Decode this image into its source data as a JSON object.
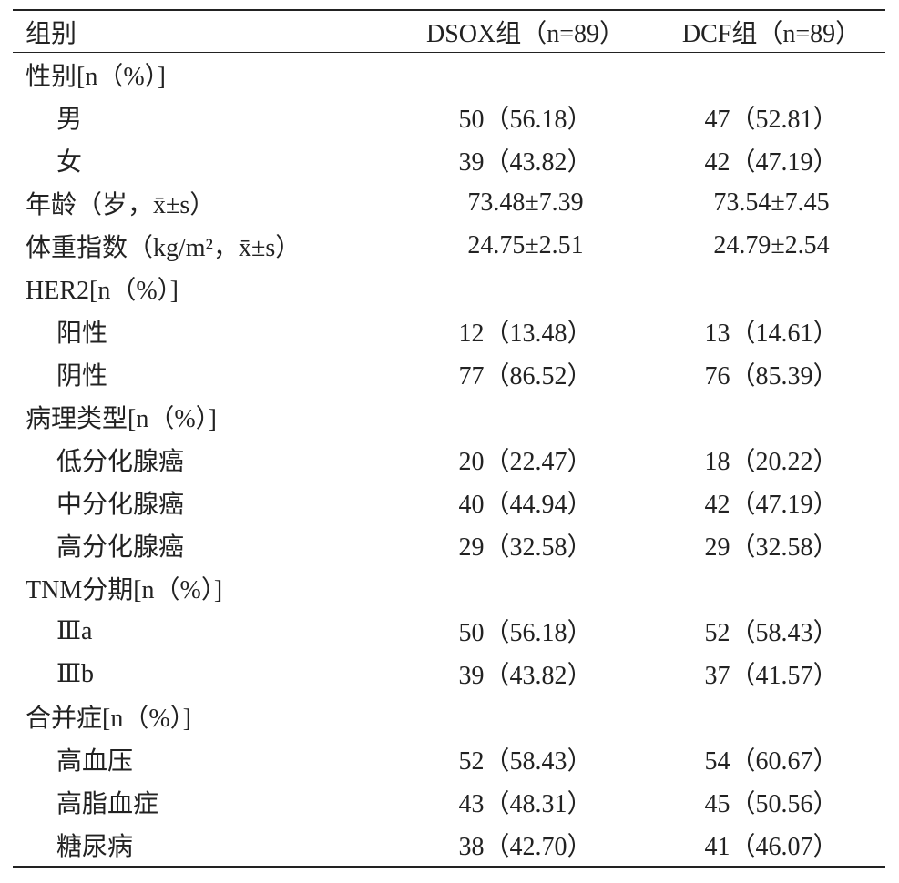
{
  "table": {
    "header": [
      "组别",
      "DSOX组（n=89）",
      "DCF组（n=89）"
    ],
    "rows": [
      {
        "label": "性别[n（%）]",
        "rows": [
          [
            "男",
            "50（56.18）",
            "47（52.81）"
          ],
          [
            "女",
            "39（43.82）",
            "42（47.19）"
          ]
        ]
      },
      [
        "年龄（岁，x̄±s）",
        "73.48±7.39",
        "73.54±7.45"
      ],
      [
        "体重指数（kg/m²，x̄±s）",
        "24.75±2.51",
        "24.79±2.54"
      ],
      {
        "label": "HER2[n（%）]",
        "rows": [
          [
            "阳性",
            "12（13.48）",
            "13（14.61）"
          ],
          [
            "阴性",
            "77（86.52）",
            "76（85.39）"
          ]
        ]
      },
      {
        "label": "病理类型[n（%）]",
        "rows": [
          [
            "低分化腺癌",
            "20（22.47）",
            "18（20.22）"
          ],
          [
            "中分化腺癌",
            "40（44.94）",
            "42（47.19）"
          ],
          [
            "高分化腺癌",
            "29（32.58）",
            "29（32.58）"
          ]
        ]
      },
      {
        "label": "TNM分期[n（%）]",
        "rows": [
          [
            "Ⅲa",
            "50（56.18）",
            "52（58.43）"
          ],
          [
            "Ⅲb",
            "39（43.82）",
            "37（41.57）"
          ]
        ]
      },
      {
        "label": "合并症[n（%）]",
        "rows": [
          [
            "高血压",
            "52（58.43）",
            "54（60.67）"
          ],
          [
            "高脂血症",
            "43（48.31）",
            "45（50.56）"
          ],
          [
            "糖尿病",
            "38（42.70）",
            "41（46.07）"
          ]
        ]
      }
    ]
  }
}
